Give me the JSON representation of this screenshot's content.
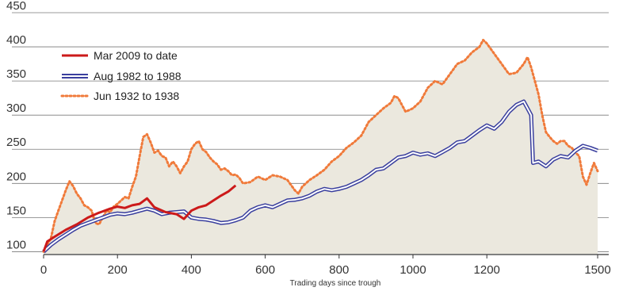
{
  "chart_data": {
    "type": "line",
    "xlabel": "Trading days since trough",
    "ylabel": "",
    "xlim": [
      0,
      1530
    ],
    "ylim": [
      97,
      450
    ],
    "x_ticks": [
      0,
      200,
      400,
      600,
      800,
      1000,
      1200,
      1500
    ],
    "y_ticks": [
      100,
      150,
      200,
      250,
      300,
      350,
      400,
      450
    ],
    "legend_position": "top-left",
    "series": [
      {
        "name": "Mar 2009 to date",
        "color": "#cc1a1a",
        "style": "solid",
        "points": [
          [
            0,
            100
          ],
          [
            10,
            115
          ],
          [
            30,
            122
          ],
          [
            60,
            132
          ],
          [
            90,
            140
          ],
          [
            120,
            150
          ],
          [
            150,
            157
          ],
          [
            180,
            163
          ],
          [
            200,
            166
          ],
          [
            220,
            164
          ],
          [
            240,
            168
          ],
          [
            260,
            170
          ],
          [
            280,
            178
          ],
          [
            300,
            165
          ],
          [
            330,
            158
          ],
          [
            360,
            155
          ],
          [
            380,
            148
          ],
          [
            400,
            160
          ],
          [
            420,
            165
          ],
          [
            440,
            168
          ],
          [
            460,
            175
          ],
          [
            480,
            182
          ],
          [
            500,
            188
          ],
          [
            520,
            197
          ]
        ]
      },
      {
        "name": "Aug 1982 to 1988",
        "color": "#3a3f9e",
        "style": "double",
        "points": [
          [
            0,
            100
          ],
          [
            20,
            110
          ],
          [
            40,
            118
          ],
          [
            60,
            125
          ],
          [
            80,
            132
          ],
          [
            100,
            138
          ],
          [
            120,
            142
          ],
          [
            140,
            146
          ],
          [
            160,
            150
          ],
          [
            180,
            154
          ],
          [
            200,
            156
          ],
          [
            220,
            155
          ],
          [
            240,
            157
          ],
          [
            260,
            160
          ],
          [
            280,
            163
          ],
          [
            300,
            160
          ],
          [
            320,
            155
          ],
          [
            340,
            157
          ],
          [
            360,
            158
          ],
          [
            380,
            159
          ],
          [
            400,
            150
          ],
          [
            420,
            148
          ],
          [
            440,
            147
          ],
          [
            460,
            145
          ],
          [
            480,
            142
          ],
          [
            500,
            143
          ],
          [
            520,
            146
          ],
          [
            540,
            150
          ],
          [
            560,
            160
          ],
          [
            580,
            165
          ],
          [
            600,
            168
          ],
          [
            620,
            165
          ],
          [
            640,
            170
          ],
          [
            660,
            175
          ],
          [
            680,
            176
          ],
          [
            700,
            178
          ],
          [
            720,
            182
          ],
          [
            740,
            188
          ],
          [
            760,
            192
          ],
          [
            780,
            190
          ],
          [
            800,
            192
          ],
          [
            820,
            195
          ],
          [
            840,
            200
          ],
          [
            860,
            205
          ],
          [
            880,
            212
          ],
          [
            900,
            220
          ],
          [
            920,
            222
          ],
          [
            940,
            230
          ],
          [
            960,
            238
          ],
          [
            980,
            240
          ],
          [
            1000,
            245
          ],
          [
            1020,
            242
          ],
          [
            1040,
            244
          ],
          [
            1060,
            240
          ],
          [
            1080,
            246
          ],
          [
            1100,
            252
          ],
          [
            1120,
            260
          ],
          [
            1140,
            262
          ],
          [
            1160,
            270
          ],
          [
            1180,
            278
          ],
          [
            1200,
            285
          ],
          [
            1220,
            280
          ],
          [
            1240,
            290
          ],
          [
            1260,
            305
          ],
          [
            1280,
            315
          ],
          [
            1300,
            320
          ],
          [
            1310,
            310
          ],
          [
            1320,
            300
          ],
          [
            1325,
            230
          ],
          [
            1340,
            232
          ],
          [
            1360,
            225
          ],
          [
            1380,
            235
          ],
          [
            1400,
            240
          ],
          [
            1420,
            238
          ],
          [
            1440,
            248
          ],
          [
            1460,
            255
          ],
          [
            1480,
            252
          ],
          [
            1500,
            248
          ]
        ]
      },
      {
        "name": "Jun 1932 to 1938",
        "color": "#f07a3a",
        "style": "dotted",
        "points": [
          [
            0,
            100
          ],
          [
            10,
            110
          ],
          [
            20,
            120
          ],
          [
            30,
            145
          ],
          [
            40,
            160
          ],
          [
            50,
            175
          ],
          [
            60,
            190
          ],
          [
            70,
            203
          ],
          [
            80,
            196
          ],
          [
            90,
            185
          ],
          [
            100,
            178
          ],
          [
            110,
            168
          ],
          [
            120,
            165
          ],
          [
            130,
            160
          ],
          [
            140,
            142
          ],
          [
            150,
            140
          ],
          [
            160,
            150
          ],
          [
            170,
            160
          ],
          [
            180,
            158
          ],
          [
            190,
            166
          ],
          [
            200,
            170
          ],
          [
            210,
            175
          ],
          [
            220,
            180
          ],
          [
            230,
            178
          ],
          [
            240,
            195
          ],
          [
            250,
            210
          ],
          [
            260,
            240
          ],
          [
            270,
            268
          ],
          [
            280,
            272
          ],
          [
            290,
            260
          ],
          [
            300,
            245
          ],
          [
            310,
            248
          ],
          [
            320,
            240
          ],
          [
            330,
            238
          ],
          [
            340,
            225
          ],
          [
            350,
            232
          ],
          [
            360,
            225
          ],
          [
            370,
            215
          ],
          [
            380,
            225
          ],
          [
            390,
            232
          ],
          [
            400,
            250
          ],
          [
            410,
            258
          ],
          [
            420,
            262
          ],
          [
            430,
            250
          ],
          [
            440,
            246
          ],
          [
            450,
            238
          ],
          [
            460,
            232
          ],
          [
            470,
            228
          ],
          [
            480,
            220
          ],
          [
            490,
            222
          ],
          [
            500,
            218
          ],
          [
            510,
            212
          ],
          [
            520,
            213
          ],
          [
            530,
            208
          ],
          [
            540,
            200
          ],
          [
            560,
            202
          ],
          [
            580,
            210
          ],
          [
            600,
            205
          ],
          [
            620,
            212
          ],
          [
            640,
            210
          ],
          [
            660,
            205
          ],
          [
            680,
            190
          ],
          [
            690,
            185
          ],
          [
            700,
            195
          ],
          [
            720,
            205
          ],
          [
            740,
            212
          ],
          [
            760,
            220
          ],
          [
            780,
            232
          ],
          [
            800,
            240
          ],
          [
            820,
            252
          ],
          [
            840,
            260
          ],
          [
            860,
            270
          ],
          [
            880,
            290
          ],
          [
            900,
            300
          ],
          [
            920,
            310
          ],
          [
            940,
            318
          ],
          [
            950,
            328
          ],
          [
            960,
            325
          ],
          [
            980,
            305
          ],
          [
            1000,
            310
          ],
          [
            1020,
            320
          ],
          [
            1040,
            340
          ],
          [
            1060,
            350
          ],
          [
            1080,
            345
          ],
          [
            1100,
            360
          ],
          [
            1120,
            375
          ],
          [
            1140,
            380
          ],
          [
            1160,
            392
          ],
          [
            1180,
            400
          ],
          [
            1190,
            410
          ],
          [
            1200,
            405
          ],
          [
            1220,
            390
          ],
          [
            1240,
            375
          ],
          [
            1260,
            360
          ],
          [
            1280,
            362
          ],
          [
            1300,
            375
          ],
          [
            1310,
            385
          ],
          [
            1320,
            370
          ],
          [
            1330,
            350
          ],
          [
            1340,
            330
          ],
          [
            1350,
            300
          ],
          [
            1360,
            275
          ],
          [
            1370,
            268
          ],
          [
            1380,
            262
          ],
          [
            1390,
            258
          ],
          [
            1400,
            262
          ],
          [
            1410,
            262
          ],
          [
            1420,
            255
          ],
          [
            1430,
            252
          ],
          [
            1440,
            245
          ],
          [
            1450,
            240
          ],
          [
            1460,
            210
          ],
          [
            1470,
            198
          ],
          [
            1480,
            215
          ],
          [
            1490,
            230
          ],
          [
            1500,
            218
          ]
        ]
      }
    ]
  }
}
